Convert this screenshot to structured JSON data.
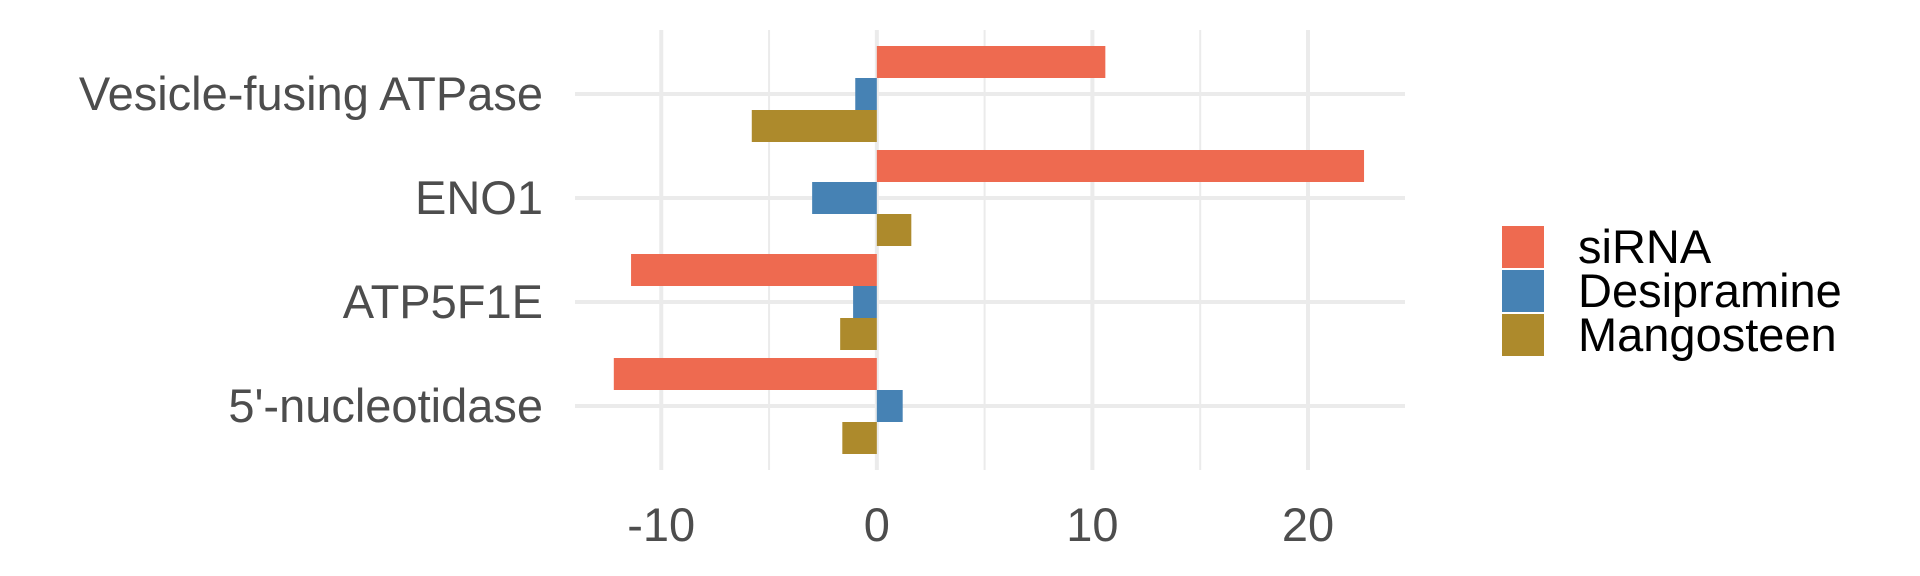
{
  "chart_data": {
    "type": "bar",
    "orientation": "horizontal",
    "categories": [
      "Vesicle-fusing ATPase",
      "ENO1",
      "ATP5F1E",
      "5'-nucleotidase"
    ],
    "series": [
      {
        "name": "siRNA",
        "color": "#EE6A50",
        "values": [
          10.6,
          22.6,
          -11.4,
          -12.2
        ]
      },
      {
        "name": "Desipramine",
        "color": "#4682B4",
        "values": [
          -1.0,
          -3.0,
          -1.1,
          1.2
        ]
      },
      {
        "name": "Mangosteen",
        "color": "#AD8A2C",
        "values": [
          -5.8,
          1.6,
          -1.7,
          -1.6
        ]
      }
    ],
    "xlim": [
      -14,
      24.5
    ],
    "xticks": [
      -10,
      0,
      10,
      20
    ],
    "xtick_labels": [
      "-10",
      "0",
      "10",
      "20"
    ],
    "minor_xticks": [
      -5,
      5,
      15
    ],
    "title": "",
    "xlabel": "",
    "ylabel": "",
    "grid": true,
    "legend": {
      "position": "right",
      "entries": [
        "siRNA",
        "Desipramine",
        "Mangosteen"
      ]
    },
    "grid_color": "#EBEBEB"
  }
}
